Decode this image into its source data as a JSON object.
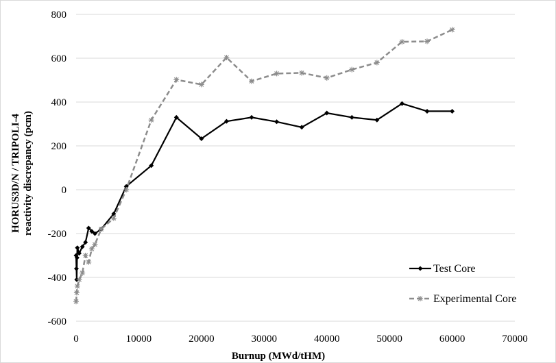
{
  "chart_data": {
    "type": "line",
    "title": "",
    "xlabel": "Burnup (MWd/tHM)",
    "ylabel_line1": "HORUS3D/N / TRIPOLI-4",
    "ylabel_line2": "reactivity discrepancy (pcm)",
    "xlim": [
      0,
      70000
    ],
    "ylim": [
      -600,
      800
    ],
    "x_ticks": [
      0,
      10000,
      20000,
      30000,
      40000,
      50000,
      60000,
      70000
    ],
    "y_ticks": [
      -600,
      -400,
      -200,
      0,
      200,
      400,
      600,
      800
    ],
    "grid": "horizontal",
    "legend_position": "bottom-right",
    "series": [
      {
        "name": "Test Core",
        "color": "#000000",
        "style": "solid",
        "marker": "diamond",
        "points": [
          [
            0,
            -300
          ],
          [
            50,
            -360
          ],
          [
            100,
            -410
          ],
          [
            150,
            -310
          ],
          [
            200,
            -265
          ],
          [
            500,
            -290
          ],
          [
            1000,
            -260
          ],
          [
            1500,
            -240
          ],
          [
            2000,
            -175
          ],
          [
            2500,
            -190
          ],
          [
            3000,
            -200
          ],
          [
            4000,
            -180
          ],
          [
            6000,
            -110
          ],
          [
            8000,
            15
          ],
          [
            12000,
            110
          ],
          [
            16000,
            330
          ],
          [
            20000,
            233
          ],
          [
            24000,
            312
          ],
          [
            28000,
            330
          ],
          [
            32000,
            310
          ],
          [
            36000,
            285
          ],
          [
            40000,
            350
          ],
          [
            44000,
            330
          ],
          [
            48000,
            318
          ],
          [
            52000,
            393
          ],
          [
            56000,
            358
          ],
          [
            60000,
            358
          ]
        ]
      },
      {
        "name": "Experimental Core",
        "color": "#8c8c8c",
        "style": "dashed",
        "marker": "star",
        "points": [
          [
            0,
            -510
          ],
          [
            100,
            -470
          ],
          [
            200,
            -440
          ],
          [
            500,
            -410
          ],
          [
            1000,
            -380
          ],
          [
            1500,
            -300
          ],
          [
            2000,
            -330
          ],
          [
            2500,
            -270
          ],
          [
            3000,
            -250
          ],
          [
            4000,
            -180
          ],
          [
            6000,
            -130
          ],
          [
            8000,
            0
          ],
          [
            12000,
            318
          ],
          [
            16000,
            502
          ],
          [
            20000,
            480
          ],
          [
            24000,
            603
          ],
          [
            28000,
            495
          ],
          [
            32000,
            530
          ],
          [
            36000,
            533
          ],
          [
            40000,
            510
          ],
          [
            44000,
            548
          ],
          [
            48000,
            580
          ],
          [
            52000,
            675
          ],
          [
            56000,
            677
          ],
          [
            60000,
            730
          ]
        ]
      }
    ]
  }
}
